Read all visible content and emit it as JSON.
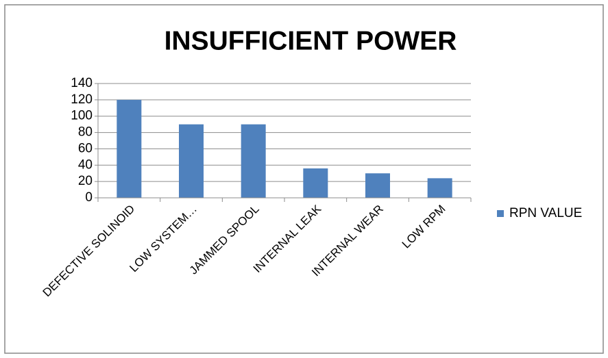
{
  "chart_data": {
    "type": "bar",
    "title": "INSUFFICIENT POWER",
    "categories": [
      "DEFECTIVE SOLINOID",
      "LOW SYSTEM…",
      "JAMMED SPOOL",
      "INTERNAL LEAK",
      "INTERNAL WEAR",
      "LOW RPM"
    ],
    "series": [
      {
        "name": "RPN VALUE",
        "color": "#4f81bd",
        "values": [
          120,
          90,
          90,
          36,
          30,
          24
        ]
      }
    ],
    "ylim": [
      0,
      140
    ],
    "yticks": [
      0,
      20,
      40,
      60,
      80,
      100,
      120,
      140
    ],
    "grid": true,
    "legend": "right"
  }
}
